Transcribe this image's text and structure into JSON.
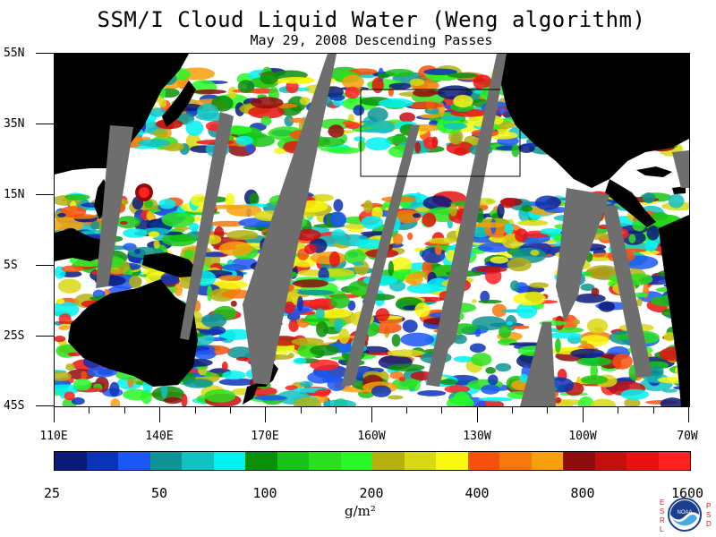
{
  "header": {
    "title": "SSM/I Cloud Liquid Water (Weng algorithm)",
    "subtitle": "May 29, 2008  Descending Passes"
  },
  "map": {
    "lat_labels": [
      "55N",
      "35N",
      "15N",
      "5S",
      "25S",
      "45S"
    ],
    "lon_labels": [
      "110E",
      "140E",
      "170E",
      "160W",
      "130W",
      "100W",
      "70W"
    ],
    "colors": {
      "land": "#000000",
      "no_data_swath": "#6e6e6e",
      "background": "#ffffff",
      "box_outline": "#000000",
      "marker": "#ff0000"
    }
  },
  "colorbar": {
    "labels": [
      "25",
      "50",
      "100",
      "200",
      "400",
      "800",
      "1600"
    ],
    "colors": [
      "#0b1a7a",
      "#0a33b8",
      "#1b57f5",
      "#0e9494",
      "#12c2c2",
      "#00f2f2",
      "#0a8f0a",
      "#18c418",
      "#2ae01e",
      "#28f828",
      "#b4b012",
      "#d8d814",
      "#f8f810",
      "#f8500c",
      "#f8780c",
      "#f8a00c",
      "#8e0c0c",
      "#c40f0f",
      "#e81212",
      "#ff2020"
    ],
    "units": "g/m²"
  },
  "logo": {
    "name": "NOAA",
    "left_letters": [
      "E",
      "S",
      "R",
      "L"
    ],
    "right_letters": [
      "P",
      "S",
      "D"
    ]
  }
}
